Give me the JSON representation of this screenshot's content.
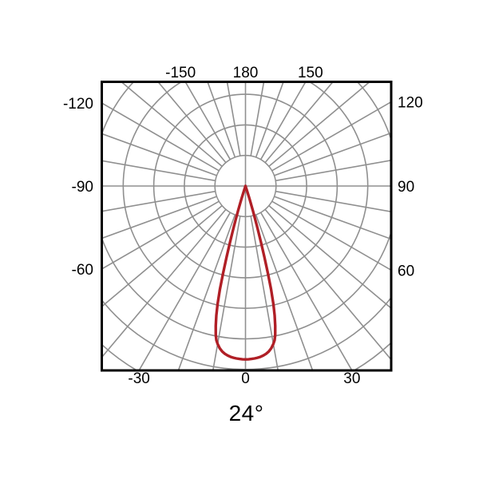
{
  "page": {
    "background": "#ffffff"
  },
  "chart_data": {
    "type": "polar",
    "subtype": "photometric-intensity-distribution",
    "title": "24°",
    "angle_unit": "degrees",
    "angle_convention": "0 points down, ±90 horizontal, 180 up",
    "grid": {
      "visible": true,
      "spoke_step_deg": 10,
      "ring_count": 7,
      "inner_blank_radius_rings": 1,
      "color": "#8f8f8f",
      "frame_color": "#000000"
    },
    "axis_labels": {
      "top": [
        "-150",
        "180",
        "150"
      ],
      "right": [
        "120",
        "90",
        "60"
      ],
      "bottom": [
        "-30",
        "0",
        "30"
      ],
      "left": [
        "-120",
        "-90",
        "-60"
      ]
    },
    "series": [
      {
        "name": "beam-intensity-curve",
        "color": "#b01f26",
        "beam_angle": "24°",
        "peak_angle_deg": 0,
        "peak_radius_rings": 5.67,
        "profile_theta_r": [
          [
            0,
            1.0
          ],
          [
            1,
            0.9995
          ],
          [
            2,
            0.998
          ],
          [
            3,
            0.996
          ],
          [
            4,
            0.993
          ],
          [
            5,
            0.989
          ],
          [
            6,
            0.983
          ],
          [
            7,
            0.975
          ],
          [
            8,
            0.964
          ],
          [
            9,
            0.948
          ],
          [
            10,
            0.925
          ],
          [
            10.7,
            0.905
          ],
          [
            11.3,
            0.875
          ],
          [
            12,
            0.825
          ],
          [
            12.7,
            0.765
          ],
          [
            13.3,
            0.7
          ],
          [
            13.9,
            0.615
          ],
          [
            14.4,
            0.52
          ],
          [
            14.9,
            0.425
          ],
          [
            15.4,
            0.335
          ],
          [
            16,
            0.24
          ],
          [
            16.7,
            0.15
          ],
          [
            17.4,
            0.08
          ],
          [
            18,
            0.035
          ],
          [
            18.5,
            0.008
          ],
          [
            18.7,
            0
          ]
        ]
      }
    ]
  }
}
